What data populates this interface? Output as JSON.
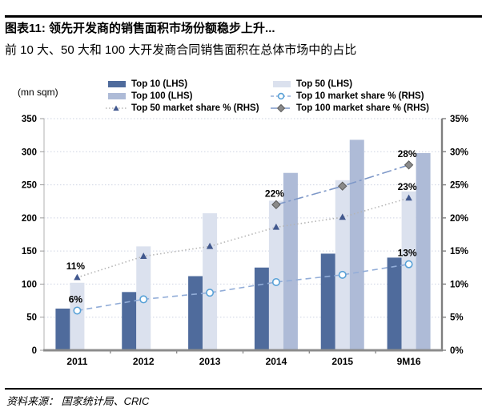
{
  "header": {
    "title": "图表11: 领先开发商的销售面积市场份额稳步上升...",
    "subtitle": "前 10 大、50 大和 100 大开发商合同销售面积在总体市场中的占比"
  },
  "chart_data": {
    "type": "bar+line",
    "unit_label": "(mn sqm)",
    "categories": [
      "2011",
      "2012",
      "2013",
      "2014",
      "2015",
      "9M16"
    ],
    "left_axis": {
      "min": 0,
      "max": 350,
      "step": 50
    },
    "right_axis": {
      "min": 0,
      "max": 35,
      "step": 5,
      "suffix": "%"
    },
    "grid": true,
    "legend_position": "top",
    "bar_series": [
      {
        "name": "Top 10 (LHS)",
        "axis": "left",
        "color_key": "top10",
        "values": [
          63,
          88,
          112,
          125,
          146,
          140
        ]
      },
      {
        "name": "Top 50 (LHS)",
        "axis": "left",
        "color_key": "top50",
        "values": [
          102,
          157,
          207,
          226,
          257,
          240
        ]
      },
      {
        "name": "Top 100 (LHS)",
        "axis": "left",
        "color_key": "top100",
        "values": [
          null,
          null,
          null,
          268,
          318,
          298
        ]
      }
    ],
    "line_series": [
      {
        "name": "Top 10 market share % (RHS)",
        "axis": "right",
        "color_key": "line10",
        "marker": "circle",
        "values": [
          6,
          7.7,
          8.7,
          10.3,
          11.4,
          13
        ],
        "labels": {
          "0": "6%",
          "5": "13%"
        }
      },
      {
        "name": "Top 50 market share % (RHS)",
        "axis": "right",
        "color_key": "line50",
        "marker": "triangle",
        "values": [
          11,
          14.2,
          15.7,
          18.6,
          20.1,
          23
        ],
        "labels": {
          "0": "11%",
          "5": "23%"
        }
      },
      {
        "name": "Top 100 market share % (RHS)",
        "axis": "right",
        "color_key": "line100",
        "marker": "diamond",
        "values": [
          null,
          null,
          null,
          22,
          24.8,
          28
        ],
        "labels": {
          "3": "22%",
          "5": "28%"
        }
      }
    ],
    "legend": [
      {
        "label": "Top 10 (LHS)",
        "marker": "bar",
        "color_key": "top10"
      },
      {
        "label": "Top 50 (LHS)",
        "marker": "bar",
        "color_key": "top50"
      },
      {
        "label": "Top 100 (LHS)",
        "marker": "bar",
        "color_key": "top100"
      },
      {
        "label": "Top 10 market share % (RHS)",
        "marker": "dash-circle",
        "color_key": "line10"
      },
      {
        "label": "Top 50 market share % (RHS)",
        "marker": "dot-triangle",
        "color_key": "line50"
      },
      {
        "label": "Top 100 market share % (RHS)",
        "marker": "dashdot-diamond",
        "color_key": "line100"
      }
    ]
  },
  "colors": {
    "top10": "#4f6b9c",
    "top50": "#dbe1ee",
    "top100": "#aebbd7",
    "line10": "#92add8",
    "line10_marker": "#58a1d7",
    "line50": "#b5b5b5",
    "line50_marker": "#41588e",
    "line100": "#7e98c8",
    "line100_marker": "#8a8a8a"
  },
  "footer": {
    "source": "资料来源：  国家统计局、CRIC"
  }
}
